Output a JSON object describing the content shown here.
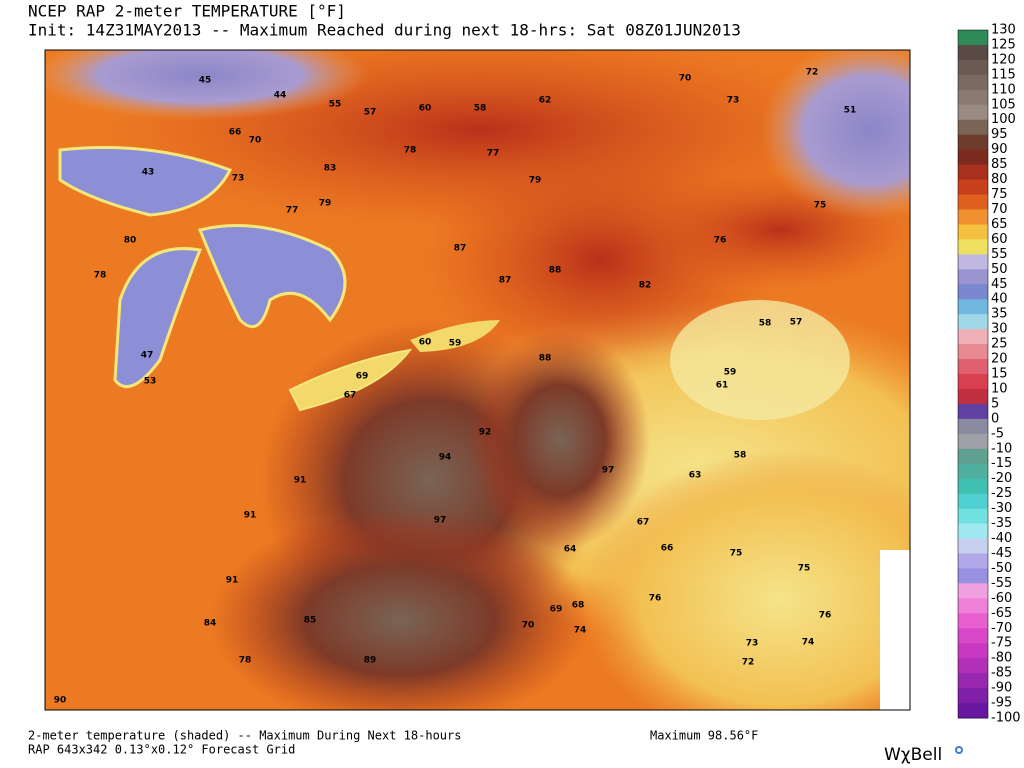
{
  "header": {
    "title": "NCEP RAP 2-meter TEMPERATURE [°F]",
    "subtitle": "Init: 14Z31MAY2013 -- Maximum Reached during next 18-hrs: Sat 08Z01JUN2013"
  },
  "colorbar": {
    "labels": [
      130,
      125,
      120,
      115,
      110,
      105,
      100,
      95,
      90,
      85,
      80,
      75,
      70,
      65,
      60,
      55,
      50,
      45,
      40,
      35,
      30,
      25,
      20,
      15,
      10,
      5,
      0,
      -5,
      -10,
      -15,
      -20,
      -25,
      -30,
      -35,
      -40,
      -45,
      -50,
      -55,
      -60,
      -65,
      -70,
      -75,
      -80,
      -85,
      -90,
      -95,
      -100
    ]
  },
  "map": {
    "stations": [
      45,
      44,
      55,
      57,
      60,
      58,
      62,
      70,
      72,
      51,
      73,
      66,
      70,
      83,
      78,
      77,
      79,
      43,
      73,
      77,
      79,
      87,
      87,
      88,
      82,
      76,
      75,
      58,
      57,
      59,
      61,
      63,
      58,
      67,
      64,
      66,
      75,
      75,
      76,
      76,
      73,
      74,
      72,
      74,
      69,
      68,
      70,
      47,
      53,
      94,
      92,
      97,
      91,
      91,
      91,
      89,
      78,
      90,
      59,
      60,
      69,
      67,
      80,
      88,
      97,
      85,
      84,
      78
    ]
  },
  "footer": {
    "description": "2-meter temperature (shaded) -- Maximum During Next 18-hours",
    "grid": "RAP 643x342 0.13°x0.12° Forecast Grid",
    "maximum": "Maximum 98.56°F",
    "brand": "WχBell"
  }
}
